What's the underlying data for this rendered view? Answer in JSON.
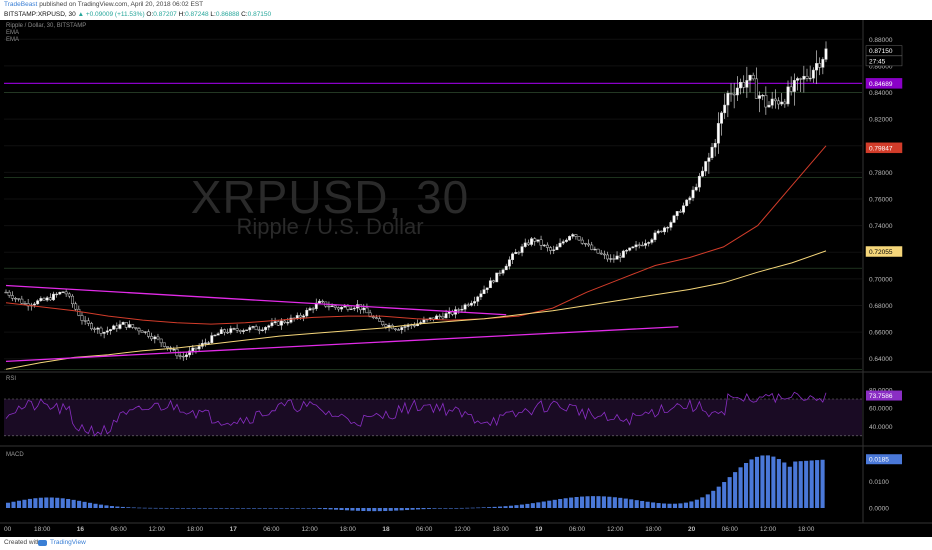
{
  "header": {
    "author": "TradeBeast",
    "published_text": "published on TradingView.com, April 20, 2018 06:02 EST",
    "symbol_line": "BITSTAMP:XRPUSD, 30",
    "change": "▲ +0.09009 (+11.53%)",
    "open_label": "O:",
    "open_value": "0.87207",
    "high_label": "H:",
    "high_value": "0.87248",
    "low_label": "L:",
    "low_value": "0.86888",
    "close_label": "C:",
    "close_value": "0.87150"
  },
  "legend": {
    "title": "Ripple / Dollar, 30, BITSTAMP",
    "ema1": "EMA",
    "ema2": "EMA"
  },
  "watermark": {
    "ticker": "XRPUSD, 30",
    "name": "Ripple / U.S. Dollar"
  },
  "price_axis": {
    "ticks": [
      "0.88000",
      "0.86000",
      "0.84000",
      "0.82000",
      "0.80000",
      "0.78000",
      "0.76000",
      "0.74000",
      "0.72000",
      "0.70000",
      "0.68000",
      "0.66000",
      "0.64000"
    ],
    "tick_values": [
      0.88,
      0.86,
      0.84,
      0.82,
      0.8,
      0.78,
      0.76,
      0.74,
      0.72,
      0.7,
      0.68,
      0.66,
      0.64
    ],
    "badges": [
      {
        "text": "0.87150",
        "value": 0.8715,
        "color": "#000000",
        "text_color": "#ffffff"
      },
      {
        "text": "27:45",
        "value": 0.8638,
        "color": "#000000",
        "text_color": "#ffffff"
      },
      {
        "text": "0.84689",
        "value": 0.84689,
        "color": "#8a00c8",
        "text_color": "#ffffff"
      },
      {
        "text": "0.79847",
        "value": 0.79847,
        "color": "#d23c2a",
        "text_color": "#ffffff"
      },
      {
        "text": "0.72055",
        "value": 0.72055,
        "color": "#f5d67a",
        "text_color": "#000000"
      }
    ]
  },
  "rsi": {
    "label": "RSI",
    "ticks": [
      "80.0000",
      "60.0000",
      "40.0000"
    ],
    "tick_values": [
      80,
      60,
      40
    ],
    "badge": "73.7586",
    "badge_value": 73.76
  },
  "macd": {
    "label": "MACD",
    "ticks": [
      "0.0100",
      "0.0000"
    ],
    "tick_values": [
      0.01,
      0.0
    ],
    "badge": "0.0185",
    "badge_value": 0.0185
  },
  "time_axis": {
    "labels": [
      "00",
      "18:00",
      "16",
      "06:00",
      "12:00",
      "18:00",
      "17",
      "06:00",
      "12:00",
      "18:00",
      "18",
      "06:00",
      "12:00",
      "18:00",
      "19",
      "06:00",
      "12:00",
      "18:00",
      "20",
      "06:00",
      "12:00",
      "18:00"
    ]
  },
  "footer": {
    "created_with": "Created with",
    "brand": "TradingView"
  },
  "colors": {
    "background": "#000000",
    "up_candle": "#ffffff",
    "down_candle": "#000000",
    "ema_fast": "#d23c2a",
    "ema_slow": "#f5d67a",
    "trendline": "#e22be8",
    "horizontal_level": "#8a00c8",
    "rsi_line": "#8a2ec4",
    "macd_bar": "#4a78d8"
  },
  "chart_data": {
    "type": "candlestick",
    "symbol": "XRPUSD",
    "interval": "30",
    "ylim": [
      0.63,
      0.89
    ],
    "series": [
      {
        "name": "EMA",
        "values": [
          0.682,
          0.679,
          0.676,
          0.672,
          0.669,
          0.667,
          0.666,
          0.667,
          0.669,
          0.671,
          0.672,
          0.672,
          0.67,
          0.669,
          0.67,
          0.672,
          0.678,
          0.69,
          0.7,
          0.71,
          0.716,
          0.724,
          0.74,
          0.77,
          0.8
        ]
      },
      {
        "name": "EMA",
        "values": [
          0.632,
          0.637,
          0.641,
          0.643,
          0.646,
          0.648,
          0.651,
          0.654,
          0.657,
          0.659,
          0.661,
          0.663,
          0.666,
          0.668,
          0.67,
          0.673,
          0.676,
          0.68,
          0.684,
          0.688,
          0.692,
          0.697,
          0.705,
          0.712,
          0.721
        ]
      }
    ],
    "closes": [
      0.69,
      0.681,
      0.684,
      0.691,
      0.667,
      0.66,
      0.666,
      0.661,
      0.652,
      0.641,
      0.65,
      0.66,
      0.662,
      0.663,
      0.667,
      0.671,
      0.682,
      0.678,
      0.68,
      0.668,
      0.663,
      0.666,
      0.671,
      0.675,
      0.685,
      0.7,
      0.718,
      0.73,
      0.72,
      0.735,
      0.722,
      0.714,
      0.722,
      0.73,
      0.742,
      0.76,
      0.79,
      0.84,
      0.85,
      0.83,
      0.838,
      0.852,
      0.871
    ],
    "horizontal_levels": [
      0.84689
    ],
    "trendlines": [
      {
        "from": [
          0,
          0.695
        ],
        "to": [
          0.61,
          0.673
        ]
      },
      {
        "from": [
          0,
          0.638
        ],
        "to": [
          0.82,
          0.664
        ]
      }
    ]
  }
}
